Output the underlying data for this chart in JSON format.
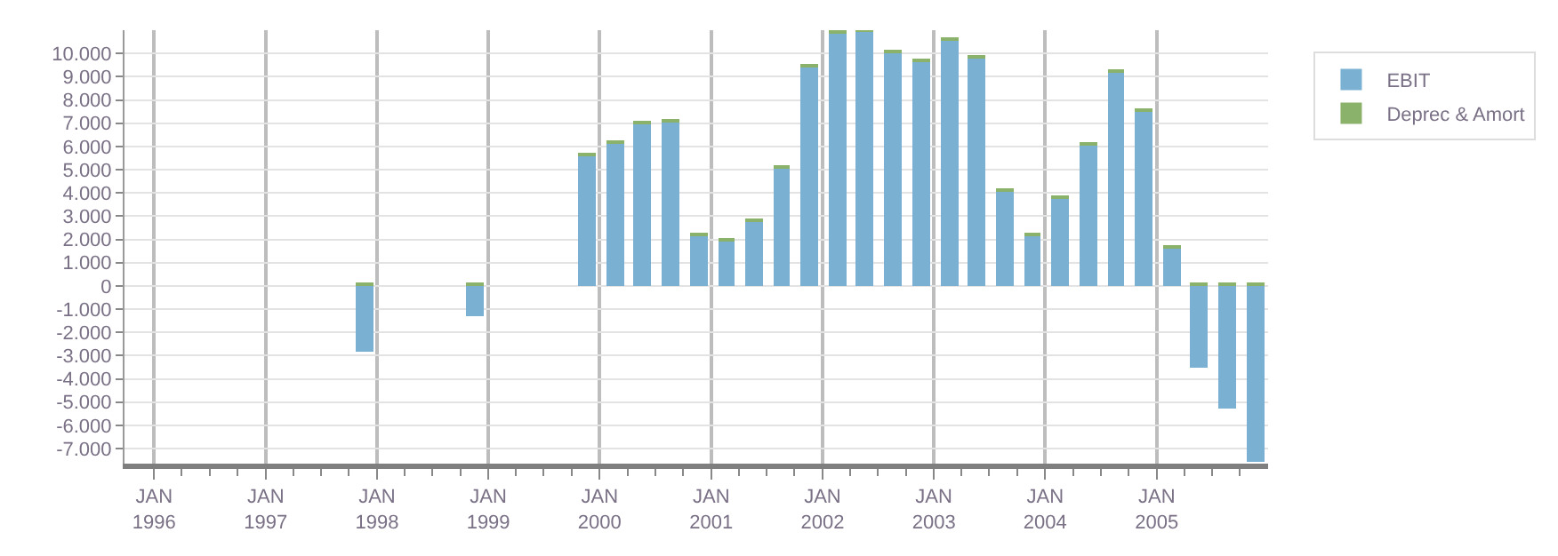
{
  "chart_data": {
    "type": "bar",
    "stacked": true,
    "x": [
      "1997-11-20",
      "1998-11-20",
      "1999-11-20",
      "2000-02-20",
      "2000-05-20",
      "2000-08-20",
      "2000-11-20",
      "2001-02-20",
      "2001-05-20",
      "2001-08-20",
      "2001-11-20",
      "2002-02-20",
      "2002-05-20",
      "2002-08-20",
      "2002-11-20",
      "2003-02-20",
      "2003-05-20",
      "2003-08-20",
      "2003-11-20",
      "2004-02-20",
      "2004-05-20",
      "2004-08-20",
      "2004-11-20",
      "2005-02-20",
      "2005-05-20",
      "2005-08-20",
      "2005-11-20"
    ],
    "series": [
      {
        "name": "EBIT",
        "color": "#7ab1d3",
        "values": [
          -2800,
          -1300,
          5600,
          6150,
          6950,
          7100,
          2150,
          1950,
          2750,
          5050,
          9400,
          10850,
          10950,
          10050,
          9700,
          10550,
          9850,
          4100,
          2150,
          3750,
          6100,
          9200,
          7500,
          1650,
          -3500,
          -5250,
          -7600
        ]
      },
      {
        "name": "Deprec & Amort",
        "color": "#8bb26a",
        "values": [
          100,
          100,
          100,
          100,
          100,
          100,
          100,
          100,
          100,
          100,
          100,
          100,
          50,
          100,
          100,
          100,
          100,
          100,
          100,
          100,
          100,
          100,
          100,
          100,
          100,
          100,
          100
        ]
      }
    ],
    "xlim": [
      "1995-09-26",
      "2006-01-01"
    ],
    "xticks": [
      {
        "value": "1996-01-01",
        "label": "JAN\n1996"
      },
      {
        "value": "1996-04-01",
        "label": null
      },
      {
        "value": "1996-07-01",
        "label": null
      },
      {
        "value": "1996-10-01",
        "label": null
      },
      {
        "value": "1997-01-01",
        "label": "JAN\n1997"
      },
      {
        "value": "1997-04-01",
        "label": null
      },
      {
        "value": "1997-07-01",
        "label": null
      },
      {
        "value": "1997-10-01",
        "label": null
      },
      {
        "value": "1998-01-01",
        "label": "JAN\n1998"
      },
      {
        "value": "1998-04-01",
        "label": null
      },
      {
        "value": "1998-07-01",
        "label": null
      },
      {
        "value": "1998-10-01",
        "label": null
      },
      {
        "value": "1999-01-01",
        "label": "JAN\n1999"
      },
      {
        "value": "1999-04-01",
        "label": null
      },
      {
        "value": "1999-07-01",
        "label": null
      },
      {
        "value": "1999-10-01",
        "label": null
      },
      {
        "value": "2000-01-01",
        "label": "JAN\n2000"
      },
      {
        "value": "2000-04-01",
        "label": null
      },
      {
        "value": "2000-07-01",
        "label": null
      },
      {
        "value": "2000-10-01",
        "label": null
      },
      {
        "value": "2001-01-01",
        "label": "JAN\n2001"
      },
      {
        "value": "2001-04-01",
        "label": null
      },
      {
        "value": "2001-07-01",
        "label": null
      },
      {
        "value": "2001-10-01",
        "label": null
      },
      {
        "value": "2002-01-01",
        "label": "JAN\n2002"
      },
      {
        "value": "2002-04-01",
        "label": null
      },
      {
        "value": "2002-07-01",
        "label": null
      },
      {
        "value": "2002-10-01",
        "label": null
      },
      {
        "value": "2003-01-01",
        "label": "JAN\n2003"
      },
      {
        "value": "2003-04-01",
        "label": null
      },
      {
        "value": "2003-07-01",
        "label": null
      },
      {
        "value": "2003-10-01",
        "label": null
      },
      {
        "value": "2004-01-01",
        "label": "JAN\n2004"
      },
      {
        "value": "2004-04-01",
        "label": null
      },
      {
        "value": "2004-07-01",
        "label": null
      },
      {
        "value": "2004-10-01",
        "label": null
      },
      {
        "value": "2005-01-01",
        "label": "JAN\n2005"
      },
      {
        "value": "2005-04-01",
        "label": null
      },
      {
        "value": "2005-07-01",
        "label": null
      },
      {
        "value": "2005-10-01",
        "label": null
      }
    ],
    "ylim": [
      -7650,
      11000
    ],
    "yticks": [
      {
        "value": -7000,
        "label": "-7.000"
      },
      {
        "value": -6000,
        "label": "-6.000"
      },
      {
        "value": -5000,
        "label": "-5.000"
      },
      {
        "value": -4000,
        "label": "-4.000"
      },
      {
        "value": -3000,
        "label": "-3.000"
      },
      {
        "value": -2000,
        "label": "-2.000"
      },
      {
        "value": -1000,
        "label": "-1.000"
      },
      0,
      {
        "value": 1000,
        "label": "1.000"
      },
      {
        "value": 2000,
        "label": "2.000"
      },
      {
        "value": 3000,
        "label": "3.000"
      },
      {
        "value": 4000,
        "label": "4.000"
      },
      {
        "value": 5000,
        "label": "5.000"
      },
      {
        "value": 6000,
        "label": "6.000"
      },
      {
        "value": 7000,
        "label": "7.000"
      },
      {
        "value": 8000,
        "label": "8.000"
      },
      {
        "value": 9000,
        "label": "9.000"
      },
      {
        "value": 10000,
        "label": "10.000"
      }
    ],
    "grid": true,
    "legend": "top right"
  }
}
